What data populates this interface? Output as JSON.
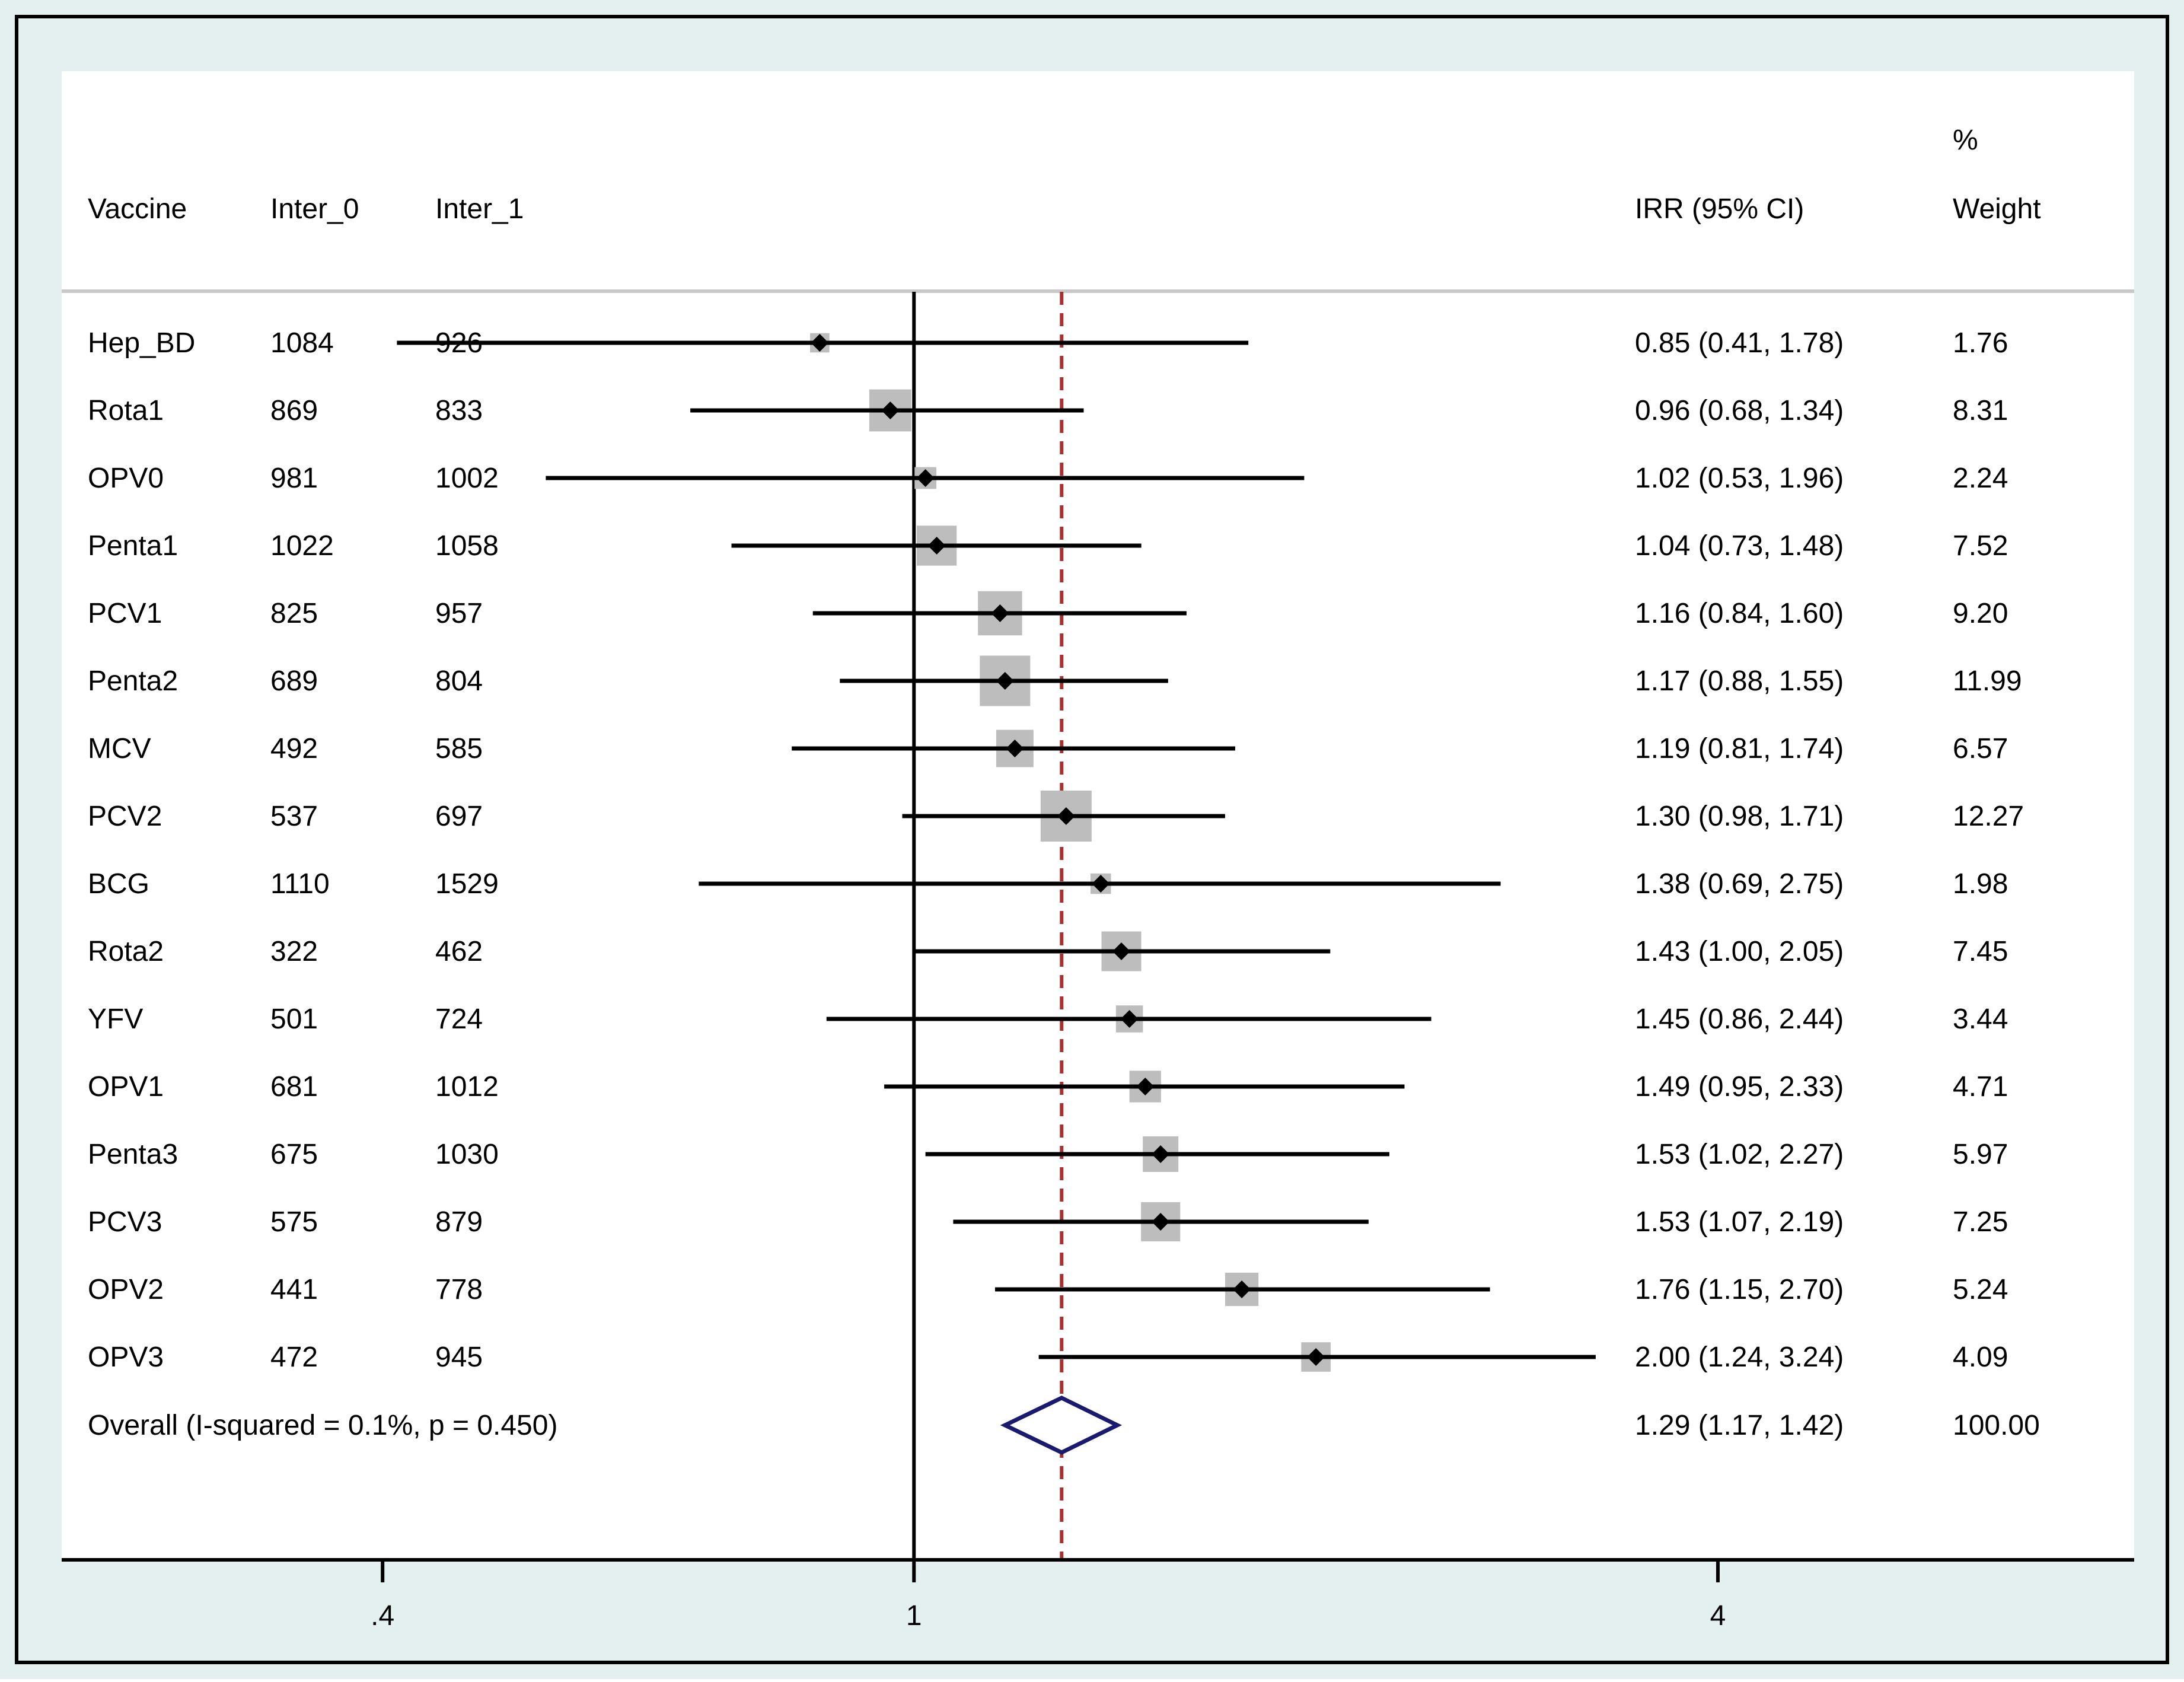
{
  "chart_data": {
    "type": "forest",
    "headers": {
      "vaccine": "Vaccine",
      "inter_0": "Inter_0",
      "inter_1": "Inter_1",
      "irr": "IRR (95% CI)",
      "weight_line1": "%",
      "weight_line2": "Weight"
    },
    "rows": [
      {
        "vaccine": "Hep_BD",
        "inter_0": "1084",
        "inter_1": "926",
        "irr": 0.85,
        "lo": 0.41,
        "hi": 1.78,
        "irr_text": "0.85 (0.41, 1.78)",
        "weight": 1.76,
        "weight_text": "1.76"
      },
      {
        "vaccine": "Rota1",
        "inter_0": "869",
        "inter_1": "833",
        "irr": 0.96,
        "lo": 0.68,
        "hi": 1.34,
        "irr_text": "0.96 (0.68, 1.34)",
        "weight": 8.31,
        "weight_text": "8.31"
      },
      {
        "vaccine": "OPV0",
        "inter_0": "981",
        "inter_1": "1002",
        "irr": 1.02,
        "lo": 0.53,
        "hi": 1.96,
        "irr_text": "1.02 (0.53, 1.96)",
        "weight": 2.24,
        "weight_text": "2.24"
      },
      {
        "vaccine": "Penta1",
        "inter_0": "1022",
        "inter_1": "1058",
        "irr": 1.04,
        "lo": 0.73,
        "hi": 1.48,
        "irr_text": "1.04 (0.73, 1.48)",
        "weight": 7.52,
        "weight_text": "7.52"
      },
      {
        "vaccine": "PCV1",
        "inter_0": "825",
        "inter_1": "957",
        "irr": 1.16,
        "lo": 0.84,
        "hi": 1.6,
        "irr_text": "1.16 (0.84, 1.60)",
        "weight": 9.2,
        "weight_text": "9.20"
      },
      {
        "vaccine": "Penta2",
        "inter_0": "689",
        "inter_1": "804",
        "irr": 1.17,
        "lo": 0.88,
        "hi": 1.55,
        "irr_text": "1.17 (0.88, 1.55)",
        "weight": 11.99,
        "weight_text": "11.99"
      },
      {
        "vaccine": "MCV",
        "inter_0": "492",
        "inter_1": "585",
        "irr": 1.19,
        "lo": 0.81,
        "hi": 1.74,
        "irr_text": "1.19 (0.81, 1.74)",
        "weight": 6.57,
        "weight_text": "6.57"
      },
      {
        "vaccine": "PCV2",
        "inter_0": "537",
        "inter_1": "697",
        "irr": 1.3,
        "lo": 0.98,
        "hi": 1.71,
        "irr_text": "1.30 (0.98, 1.71)",
        "weight": 12.27,
        "weight_text": "12.27"
      },
      {
        "vaccine": "BCG",
        "inter_0": "1110",
        "inter_1": "1529",
        "irr": 1.38,
        "lo": 0.69,
        "hi": 2.75,
        "irr_text": "1.38 (0.69, 2.75)",
        "weight": 1.98,
        "weight_text": "1.98"
      },
      {
        "vaccine": "Rota2",
        "inter_0": "322",
        "inter_1": "462",
        "irr": 1.43,
        "lo": 1.0,
        "hi": 2.05,
        "irr_text": "1.43 (1.00, 2.05)",
        "weight": 7.45,
        "weight_text": "7.45"
      },
      {
        "vaccine": "YFV",
        "inter_0": "501",
        "inter_1": "724",
        "irr": 1.45,
        "lo": 0.86,
        "hi": 2.44,
        "irr_text": "1.45 (0.86, 2.44)",
        "weight": 3.44,
        "weight_text": "3.44"
      },
      {
        "vaccine": "OPV1",
        "inter_0": "681",
        "inter_1": "1012",
        "irr": 1.49,
        "lo": 0.95,
        "hi": 2.33,
        "irr_text": "1.49 (0.95, 2.33)",
        "weight": 4.71,
        "weight_text": "4.71"
      },
      {
        "vaccine": "Penta3",
        "inter_0": "675",
        "inter_1": "1030",
        "irr": 1.53,
        "lo": 1.02,
        "hi": 2.27,
        "irr_text": "1.53 (1.02, 2.27)",
        "weight": 5.97,
        "weight_text": "5.97"
      },
      {
        "vaccine": "PCV3",
        "inter_0": "575",
        "inter_1": "879",
        "irr": 1.53,
        "lo": 1.07,
        "hi": 2.19,
        "irr_text": "1.53 (1.07, 2.19)",
        "weight": 7.25,
        "weight_text": "7.25"
      },
      {
        "vaccine": "OPV2",
        "inter_0": "441",
        "inter_1": "778",
        "irr": 1.76,
        "lo": 1.15,
        "hi": 2.7,
        "irr_text": "1.76 (1.15, 2.70)",
        "weight": 5.24,
        "weight_text": "5.24"
      },
      {
        "vaccine": "OPV3",
        "inter_0": "472",
        "inter_1": "945",
        "irr": 2.0,
        "lo": 1.24,
        "hi": 3.24,
        "irr_text": "2.00 (1.24, 3.24)",
        "weight": 4.09,
        "weight_text": "4.09"
      }
    ],
    "overall": {
      "label": "Overall  (I-squared = 0.1%, p = 0.450)",
      "irr": 1.29,
      "lo": 1.17,
      "hi": 1.42,
      "irr_text": "1.29 (1.17, 1.42)",
      "weight_text": "100.00"
    },
    "x_axis": {
      "scale": "log",
      "range": [
        0.23,
        8.2
      ],
      "ticks": [
        {
          "value": 0.4,
          "label": ".4"
        },
        {
          "value": 1,
          "label": "1"
        },
        {
          "value": 4,
          "label": "4"
        }
      ]
    },
    "null_line": 1,
    "colors": {
      "outer_bg": "#e4f0f0",
      "panel_bg": "#ffffff",
      "weight_box": "#bdbdbd",
      "marker": "#000000",
      "ci_line": "#000000",
      "overall_diamond": "#1a1a6e",
      "overall_line": "#a83232",
      "divider": "#c8c8c8"
    }
  }
}
